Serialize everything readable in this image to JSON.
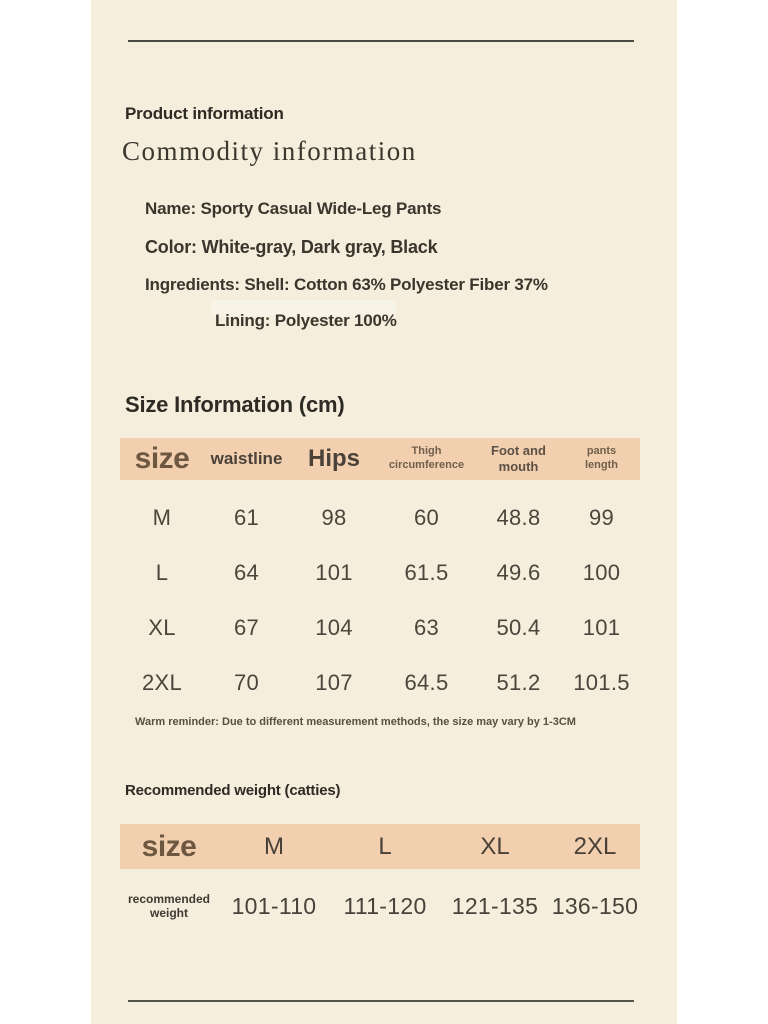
{
  "page": {
    "outer_bg": "#ffffff",
    "sheet_bg": "#f5eedd",
    "band_color": "#f2d0af",
    "text_color": "#3b362d",
    "accent_brown": "#6d5741"
  },
  "header": {
    "subtitle": "Product information",
    "title": "Commodity information"
  },
  "details": {
    "name": "Name: Sporty Casual Wide-Leg Pants",
    "color": "Color: White-gray, Dark gray, Black",
    "ingredients": "Ingredients: Shell: Cotton 63% Polyester Fiber 37%",
    "lining": "Lining: Polyester 100%"
  },
  "size_section": {
    "title": "Size Information (cm)",
    "columns": {
      "c0": "size",
      "c1": "waistline",
      "c2": "Hips",
      "c3": "Thigh circumference",
      "c4": "Foot and mouth",
      "c5": "pants length"
    },
    "rows": [
      {
        "size": "M",
        "waistline": "61",
        "hips": "98",
        "thigh": "60",
        "foot": "48.8",
        "length": "99"
      },
      {
        "size": "L",
        "waistline": "64",
        "hips": "101",
        "thigh": "61.5",
        "foot": "49.6",
        "length": "100"
      },
      {
        "size": "XL",
        "waistline": "67",
        "hips": "104",
        "thigh": "63",
        "foot": "50.4",
        "length": "101"
      },
      {
        "size": "2XL",
        "waistline": "70",
        "hips": "107",
        "thigh": "64.5",
        "foot": "51.2",
        "length": "101.5"
      }
    ],
    "note": "Warm reminder: Due to different measurement methods, the size may vary by 1-3CM"
  },
  "weight_section": {
    "title": "Recommended weight (catties)",
    "columns": {
      "c0": "size",
      "c1": "M",
      "c2": "L",
      "c3": "XL",
      "c4": "2XL"
    },
    "row_label": "recommended weight",
    "values": {
      "m": "101-110",
      "l": "111-120",
      "xl": "121-135",
      "xxl": "136-150"
    }
  }
}
